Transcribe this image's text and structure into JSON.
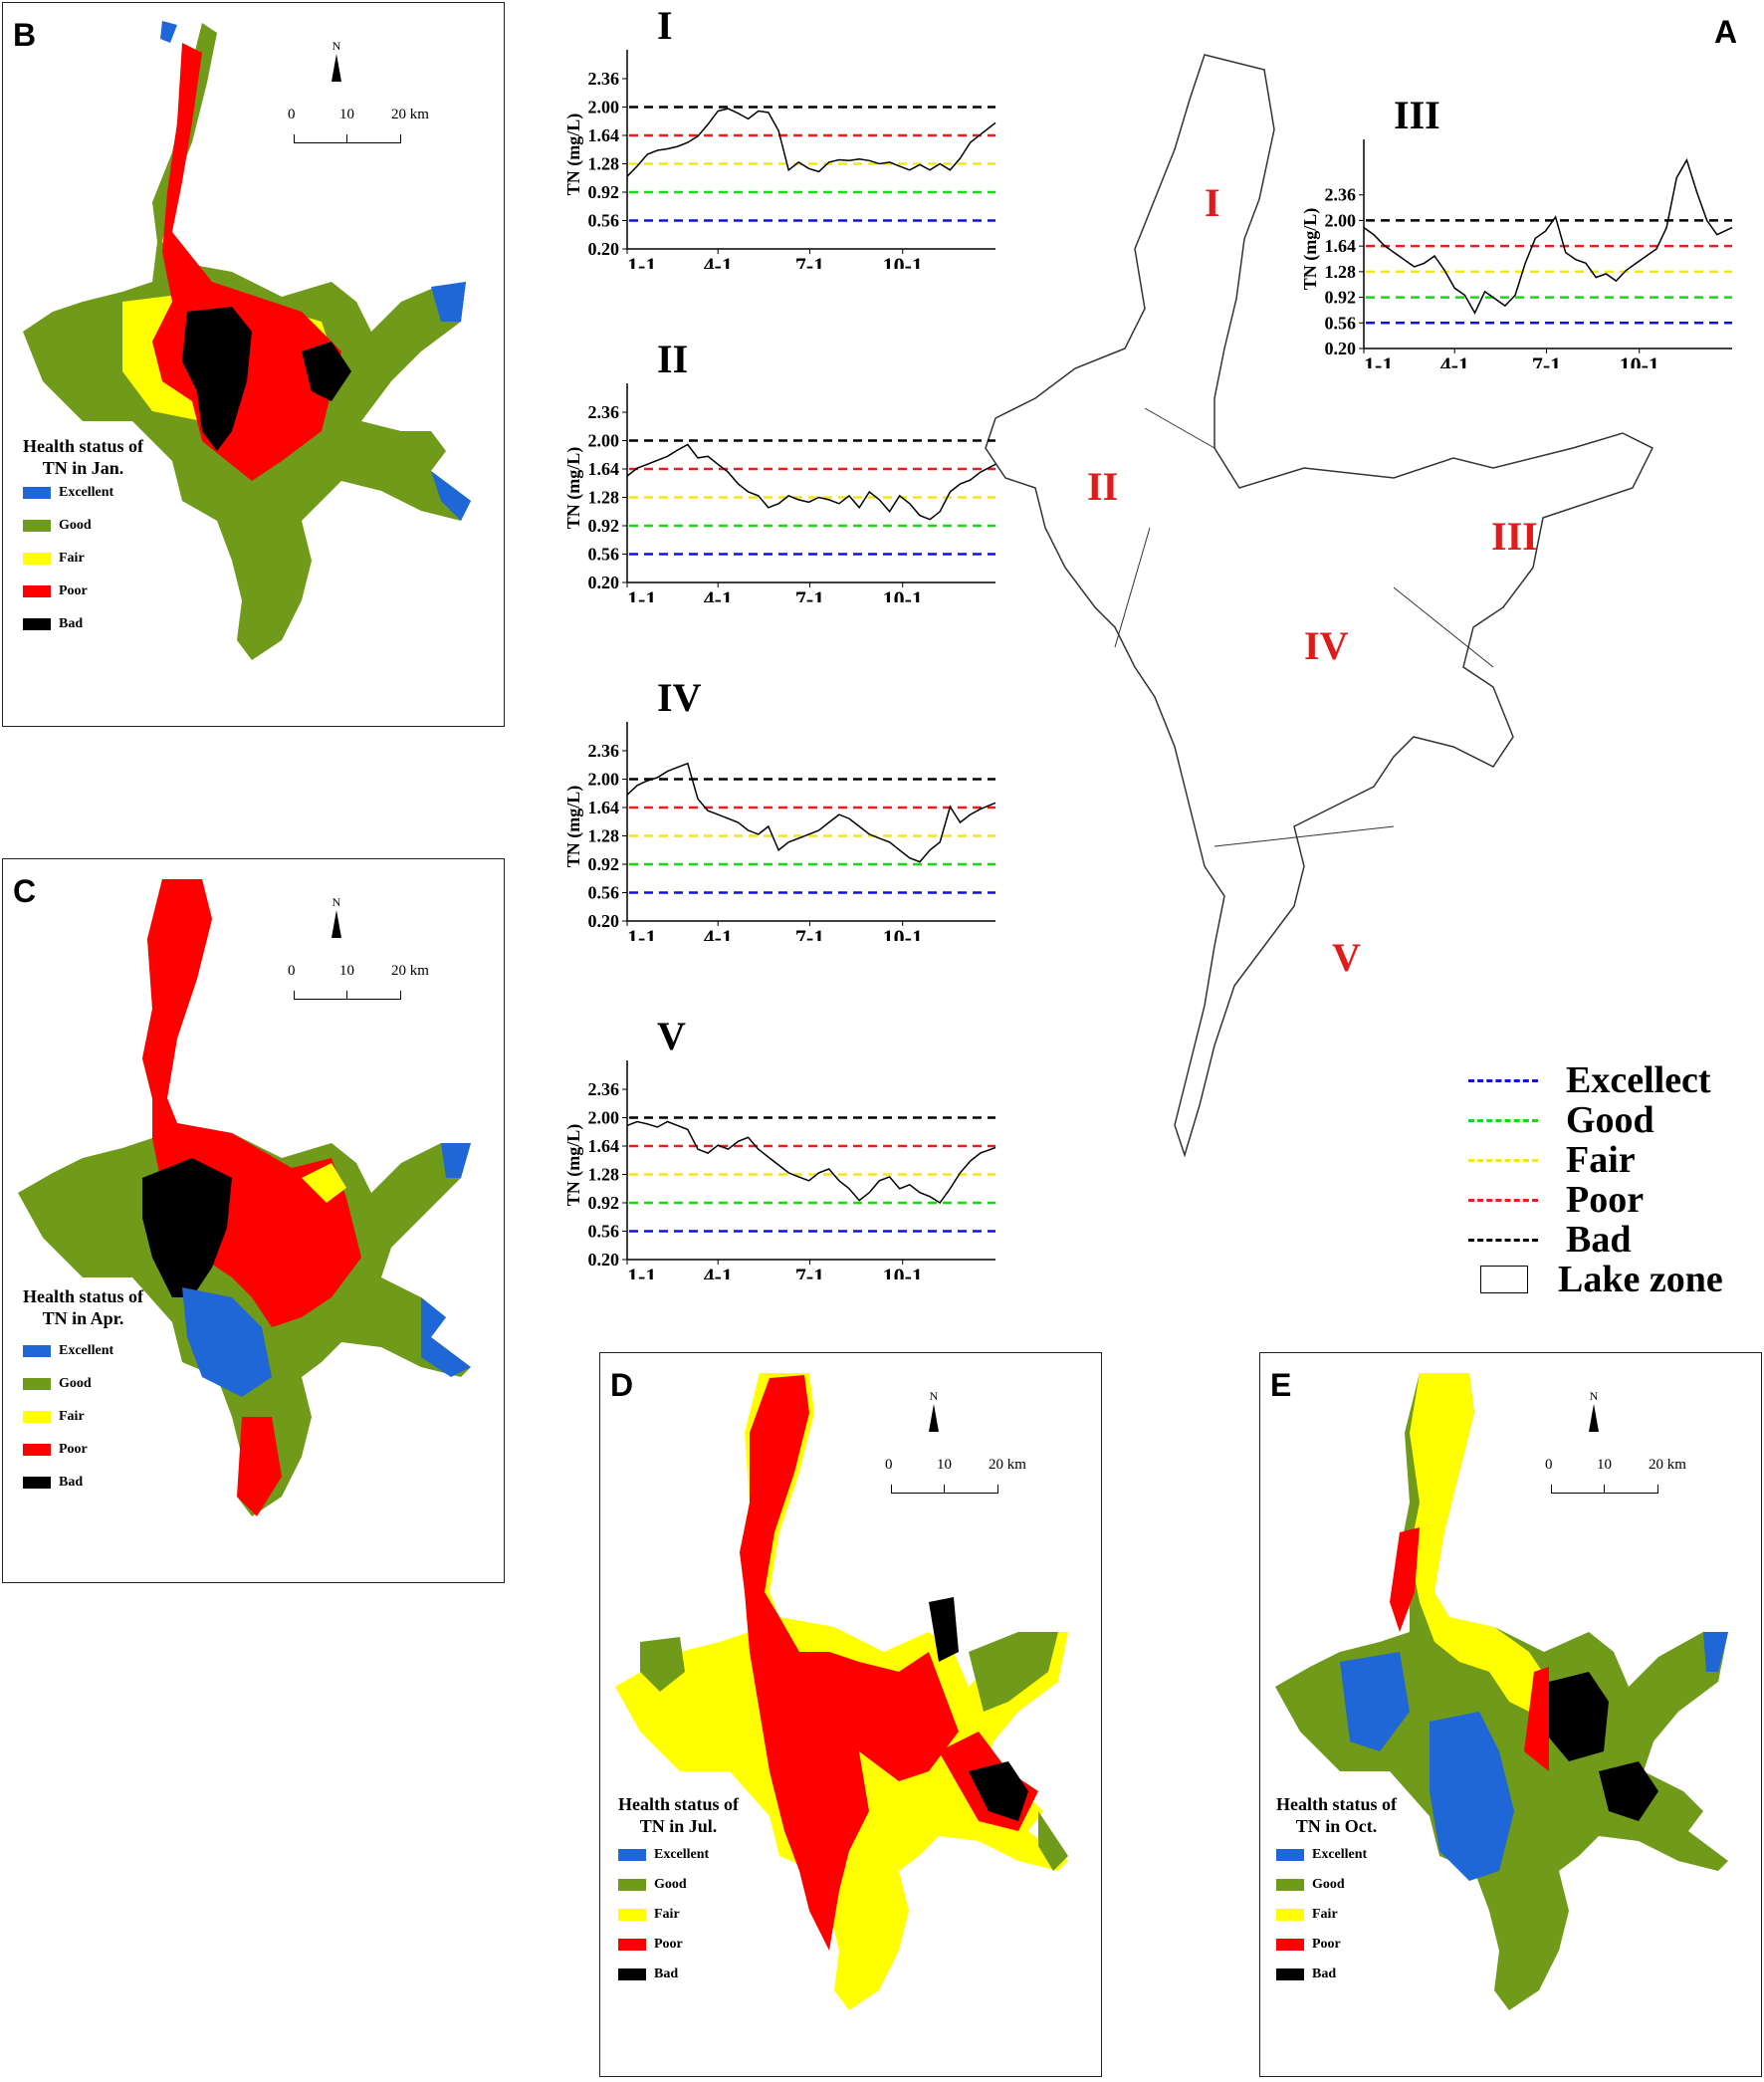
{
  "panel_labels": {
    "A": "A",
    "B": "B",
    "C": "C",
    "D": "D",
    "E": "E"
  },
  "maps": [
    {
      "id": "B",
      "title_line1": "Health status of",
      "title_line2": "TN in Jan."
    },
    {
      "id": "C",
      "title_line1": "Health status of",
      "title_line2": "TN in Apr."
    },
    {
      "id": "D",
      "title_line1": "Health status of",
      "title_line2": "TN in Jul."
    },
    {
      "id": "E",
      "title_line1": "Health status of",
      "title_line2": "TN in Oct."
    }
  ],
  "map_legend": {
    "items": [
      {
        "label": "Excellent",
        "color": "#1f66d6"
      },
      {
        "label": "Good",
        "color": "#6f9a1a"
      },
      {
        "label": "Fair",
        "color": "#ffff00"
      },
      {
        "label": "Poor",
        "color": "#ff0000"
      },
      {
        "label": "Bad",
        "color": "#000000"
      }
    ]
  },
  "scale": {
    "ticks": [
      "0",
      "10",
      "20 km"
    ],
    "north": "N"
  },
  "zones": {
    "I": "I",
    "II": "II",
    "III": "III",
    "IV": "IV",
    "V": "V"
  },
  "main_legend": {
    "items": [
      {
        "label": "Excellect",
        "color": "#1010e0",
        "kind": "dash"
      },
      {
        "label": "Good",
        "color": "#19d819",
        "kind": "dash"
      },
      {
        "label": "Fair",
        "color": "#f0e619",
        "kind": "dash"
      },
      {
        "label": "Poor",
        "color": "#ee1c1c",
        "kind": "dash"
      },
      {
        "label": "Bad",
        "color": "#000000",
        "kind": "dash"
      },
      {
        "label": "Lake zone",
        "color": "#ffffff",
        "kind": "box"
      }
    ]
  },
  "chart_data": [
    {
      "type": "line",
      "title": "I",
      "ylabel": "TN (mg/L)",
      "xticks": [
        "1-1",
        "4-1",
        "7-1",
        "10-1"
      ],
      "yticks": [
        0.2,
        0.56,
        0.92,
        1.28,
        1.64,
        2.0,
        2.36
      ],
      "ylim": [
        0.2,
        2.6
      ],
      "thresholds": [
        {
          "name": "Excellect",
          "value": 0.56,
          "color": "#1010e0"
        },
        {
          "name": "Good",
          "value": 0.92,
          "color": "#19d819"
        },
        {
          "name": "Fair",
          "value": 1.28,
          "color": "#f0e619"
        },
        {
          "name": "Poor",
          "value": 1.64,
          "color": "#ee1c1c"
        },
        {
          "name": "Bad",
          "value": 2.0,
          "color": "#000000"
        }
      ],
      "series": [
        {
          "x": [
            0,
            10,
            20,
            30,
            40,
            50,
            60,
            70,
            80,
            90,
            100,
            110,
            120,
            130,
            140,
            150,
            160,
            170,
            180,
            190,
            200,
            210,
            220,
            230,
            240,
            250,
            260,
            270,
            280,
            290,
            300,
            310,
            320,
            330,
            340,
            350,
            365
          ],
          "y": [
            1.12,
            1.25,
            1.4,
            1.45,
            1.47,
            1.5,
            1.55,
            1.63,
            1.78,
            1.95,
            1.98,
            1.92,
            1.85,
            1.95,
            1.93,
            1.7,
            1.2,
            1.3,
            1.22,
            1.18,
            1.3,
            1.33,
            1.32,
            1.34,
            1.32,
            1.28,
            1.3,
            1.25,
            1.2,
            1.27,
            1.2,
            1.28,
            1.2,
            1.35,
            1.55,
            1.65,
            1.8
          ]
        }
      ]
    },
    {
      "type": "line",
      "title": "II",
      "ylabel": "TN (mg/L)",
      "xticks": [
        "1-1",
        "4-1",
        "7-1",
        "10-1"
      ],
      "yticks": [
        0.2,
        0.56,
        0.92,
        1.28,
        1.64,
        2.0,
        2.36
      ],
      "ylim": [
        0.2,
        2.6
      ],
      "thresholds": [
        {
          "name": "Excellect",
          "value": 0.56,
          "color": "#1010e0"
        },
        {
          "name": "Good",
          "value": 0.92,
          "color": "#19d819"
        },
        {
          "name": "Fair",
          "value": 1.28,
          "color": "#f0e619"
        },
        {
          "name": "Poor",
          "value": 1.64,
          "color": "#ee1c1c"
        },
        {
          "name": "Bad",
          "value": 2.0,
          "color": "#000000"
        }
      ],
      "series": [
        {
          "x": [
            0,
            10,
            20,
            30,
            40,
            50,
            60,
            70,
            80,
            90,
            100,
            110,
            120,
            130,
            140,
            150,
            160,
            170,
            180,
            190,
            200,
            210,
            220,
            230,
            240,
            250,
            260,
            270,
            280,
            290,
            300,
            310,
            320,
            330,
            340,
            350,
            365
          ],
          "y": [
            1.55,
            1.65,
            1.7,
            1.75,
            1.8,
            1.88,
            1.95,
            1.78,
            1.8,
            1.7,
            1.6,
            1.45,
            1.35,
            1.3,
            1.15,
            1.2,
            1.3,
            1.25,
            1.22,
            1.28,
            1.25,
            1.2,
            1.3,
            1.15,
            1.35,
            1.25,
            1.1,
            1.3,
            1.2,
            1.05,
            1.0,
            1.1,
            1.35,
            1.45,
            1.5,
            1.6,
            1.7
          ]
        }
      ]
    },
    {
      "type": "line",
      "title": "III",
      "ylabel": "TN (mg/L)",
      "xticks": [
        "1-1",
        "4-1",
        "7-1",
        "10-1"
      ],
      "yticks": [
        0.2,
        0.56,
        0.92,
        1.28,
        1.64,
        2.0,
        2.36
      ],
      "ylim": [
        0.2,
        3.0
      ],
      "thresholds": [
        {
          "name": "Excellect",
          "value": 0.56,
          "color": "#1010e0"
        },
        {
          "name": "Good",
          "value": 0.92,
          "color": "#19d819"
        },
        {
          "name": "Fair",
          "value": 1.28,
          "color": "#f0e619"
        },
        {
          "name": "Poor",
          "value": 1.64,
          "color": "#ee1c1c"
        },
        {
          "name": "Bad",
          "value": 2.0,
          "color": "#000000"
        }
      ],
      "series": [
        {
          "x": [
            0,
            10,
            20,
            30,
            40,
            50,
            60,
            70,
            80,
            90,
            100,
            110,
            120,
            130,
            140,
            150,
            160,
            170,
            180,
            190,
            200,
            210,
            220,
            230,
            240,
            250,
            260,
            270,
            280,
            290,
            300,
            310,
            320,
            330,
            340,
            350,
            365
          ],
          "y": [
            1.9,
            1.8,
            1.65,
            1.55,
            1.45,
            1.35,
            1.4,
            1.5,
            1.3,
            1.05,
            0.95,
            0.7,
            1.0,
            0.9,
            0.8,
            0.95,
            1.4,
            1.75,
            1.85,
            2.05,
            1.55,
            1.45,
            1.4,
            1.2,
            1.25,
            1.15,
            1.3,
            1.4,
            1.5,
            1.6,
            1.9,
            2.6,
            2.85,
            2.4,
            2.0,
            1.8,
            1.9
          ]
        }
      ]
    },
    {
      "type": "line",
      "title": "IV",
      "ylabel": "TN (mg/L)",
      "xticks": [
        "1-1",
        "4-1",
        "7-1",
        "10-1"
      ],
      "yticks": [
        0.2,
        0.56,
        0.92,
        1.28,
        1.64,
        2.0,
        2.36
      ],
      "ylim": [
        0.2,
        2.6
      ],
      "thresholds": [
        {
          "name": "Excellect",
          "value": 0.56,
          "color": "#1010e0"
        },
        {
          "name": "Good",
          "value": 0.92,
          "color": "#19d819"
        },
        {
          "name": "Fair",
          "value": 1.28,
          "color": "#f0e619"
        },
        {
          "name": "Poor",
          "value": 1.64,
          "color": "#ee1c1c"
        },
        {
          "name": "Bad",
          "value": 2.0,
          "color": "#000000"
        }
      ],
      "series": [
        {
          "x": [
            0,
            10,
            20,
            30,
            40,
            50,
            60,
            70,
            80,
            90,
            100,
            110,
            120,
            130,
            140,
            150,
            160,
            170,
            180,
            190,
            200,
            210,
            220,
            230,
            240,
            250,
            260,
            270,
            280,
            290,
            300,
            310,
            320,
            330,
            340,
            350,
            365
          ],
          "y": [
            1.8,
            1.92,
            1.98,
            2.02,
            2.1,
            2.15,
            2.2,
            1.75,
            1.6,
            1.55,
            1.5,
            1.45,
            1.35,
            1.3,
            1.4,
            1.1,
            1.2,
            1.25,
            1.3,
            1.35,
            1.45,
            1.55,
            1.5,
            1.4,
            1.3,
            1.25,
            1.2,
            1.1,
            1.0,
            0.95,
            1.1,
            1.2,
            1.65,
            1.45,
            1.55,
            1.62,
            1.7
          ]
        }
      ]
    },
    {
      "type": "line",
      "title": "V",
      "ylabel": "TN (mg/L)",
      "xticks": [
        "1-1",
        "4-1",
        "7-1",
        "10-1"
      ],
      "yticks": [
        0.2,
        0.56,
        0.92,
        1.28,
        1.64,
        2.0,
        2.36
      ],
      "ylim": [
        0.2,
        2.6
      ],
      "thresholds": [
        {
          "name": "Excellect",
          "value": 0.56,
          "color": "#1010e0"
        },
        {
          "name": "Good",
          "value": 0.92,
          "color": "#19d819"
        },
        {
          "name": "Fair",
          "value": 1.28,
          "color": "#f0e619"
        },
        {
          "name": "Poor",
          "value": 1.64,
          "color": "#ee1c1c"
        },
        {
          "name": "Bad",
          "value": 2.0,
          "color": "#000000"
        }
      ],
      "series": [
        {
          "x": [
            0,
            10,
            20,
            30,
            40,
            50,
            60,
            70,
            80,
            90,
            100,
            110,
            120,
            130,
            140,
            150,
            160,
            170,
            180,
            190,
            200,
            210,
            220,
            230,
            240,
            250,
            260,
            270,
            280,
            290,
            300,
            310,
            320,
            330,
            340,
            350,
            365
          ],
          "y": [
            1.9,
            1.95,
            1.92,
            1.88,
            1.95,
            1.9,
            1.85,
            1.6,
            1.55,
            1.65,
            1.6,
            1.7,
            1.75,
            1.6,
            1.5,
            1.4,
            1.3,
            1.25,
            1.2,
            1.3,
            1.35,
            1.2,
            1.1,
            0.95,
            1.05,
            1.2,
            1.25,
            1.1,
            1.15,
            1.05,
            1.0,
            0.92,
            1.1,
            1.3,
            1.45,
            1.55,
            1.62
          ]
        }
      ]
    }
  ]
}
